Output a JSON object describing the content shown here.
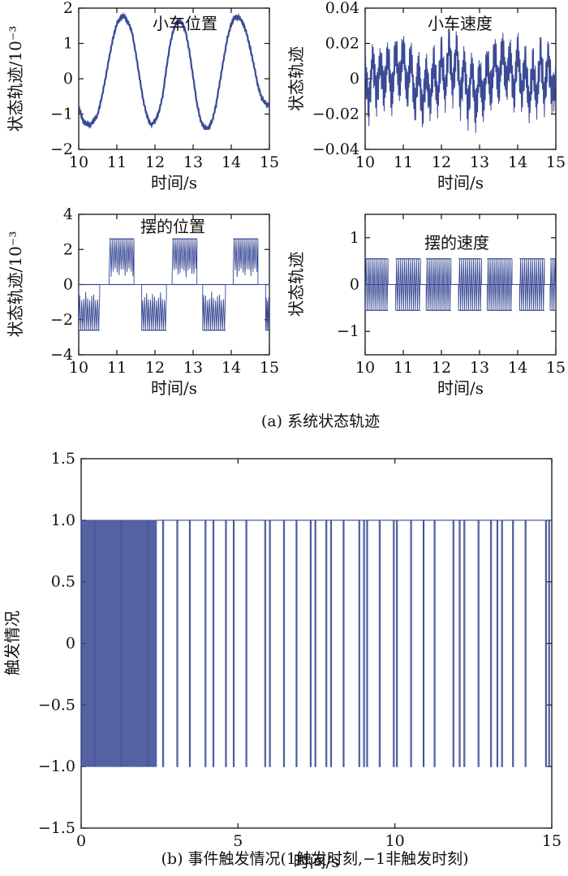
{
  "captions": {
    "a": "(a) 系统状态轨迹",
    "b": "(b) 事件触发情况(1触发时刻,−1非触发时刻)"
  },
  "colors": {
    "line": "#3a4a95",
    "axis": "#111111"
  },
  "chart_data": [
    {
      "id": "cart-position",
      "type": "line",
      "title": "小车位置",
      "xlabel": "时间/s",
      "ylabel": "状态轨迹/10⁻³",
      "xlim": [
        10,
        15
      ],
      "ylim": [
        -2,
        2
      ],
      "xticks": [
        10,
        11,
        12,
        13,
        14,
        15
      ],
      "yticks": [
        -2,
        -1,
        0,
        1,
        2
      ],
      "ytick_labels": [
        "−2",
        "−1",
        "0",
        "1",
        "2"
      ],
      "series": [
        {
          "x": [
            10.0,
            10.1,
            10.2,
            10.3,
            10.4,
            10.5,
            10.6,
            10.7,
            10.8,
            10.9,
            11.0,
            11.1,
            11.2,
            11.3,
            11.4,
            11.5,
            11.6,
            11.7,
            11.8,
            11.9,
            12.0,
            12.1,
            12.2,
            12.3,
            12.4,
            12.5,
            12.6,
            12.7,
            12.8,
            12.9,
            13.0,
            13.1,
            13.2,
            13.3,
            13.4,
            13.5,
            13.6,
            13.7,
            13.8,
            13.9,
            14.0,
            14.1,
            14.2,
            14.3,
            14.4,
            14.5,
            14.6,
            14.7,
            14.8,
            14.9,
            15.0
          ],
          "y": [
            -0.8,
            -1.15,
            -1.3,
            -1.3,
            -1.2,
            -1.0,
            -0.55,
            0.0,
            0.6,
            1.15,
            1.55,
            1.75,
            1.75,
            1.6,
            1.3,
            0.7,
            0.0,
            -0.65,
            -1.1,
            -1.3,
            -1.2,
            -0.95,
            -0.5,
            0.3,
            1.0,
            1.45,
            1.65,
            1.6,
            1.35,
            0.8,
            0.05,
            -0.7,
            -1.2,
            -1.4,
            -1.4,
            -1.2,
            -0.75,
            -0.1,
            0.55,
            1.15,
            1.55,
            1.75,
            1.75,
            1.6,
            1.3,
            0.85,
            0.35,
            -0.2,
            -0.55,
            -0.7,
            -0.75
          ]
        }
      ]
    },
    {
      "id": "cart-velocity",
      "type": "line",
      "title": "小车速度",
      "xlabel": "时间/s",
      "ylabel": "状态轨迹",
      "xlim": [
        10,
        15
      ],
      "ylim": [
        -0.04,
        0.04
      ],
      "xticks": [
        10,
        11,
        12,
        13,
        14,
        15
      ],
      "yticks": [
        -0.04,
        -0.02,
        0,
        0.02,
        0.04
      ],
      "ytick_labels": [
        "−0.04",
        "−0.02",
        "0",
        "0.02",
        "0.04"
      ],
      "series": [
        {
          "x": [
            10.0,
            10.1,
            10.2,
            10.3,
            10.4,
            10.5,
            10.6,
            10.7,
            10.8,
            10.9,
            11.0,
            11.1,
            11.2,
            11.3,
            11.4,
            11.5,
            11.6,
            11.7,
            11.8,
            11.9,
            12.0,
            12.1,
            12.2,
            12.3,
            12.4,
            12.5,
            12.6,
            12.7,
            12.8,
            12.9,
            13.0,
            13.1,
            13.2,
            13.3,
            13.4,
            13.5,
            13.6,
            13.7,
            13.8,
            13.9,
            14.0,
            14.1,
            14.2,
            14.3,
            14.4,
            14.5,
            14.6,
            14.7,
            14.8,
            14.9,
            15.0
          ],
          "y": [
            0.005,
            -0.015,
            0.012,
            -0.01,
            0.01,
            -0.008,
            0.015,
            -0.012,
            0.018,
            -0.005,
            0.02,
            -0.01,
            0.015,
            -0.018,
            0.008,
            -0.02,
            0.005,
            -0.015,
            0.01,
            -0.012,
            0.015,
            -0.008,
            0.02,
            -0.005,
            0.018,
            -0.012,
            0.01,
            -0.018,
            0.008,
            -0.02,
            0.005,
            -0.015,
            0.012,
            -0.01,
            0.018,
            -0.008,
            0.02,
            -0.005,
            0.015,
            -0.012,
            0.018,
            -0.01,
            0.01,
            -0.015,
            0.008,
            -0.012,
            0.015,
            -0.01,
            0.012,
            -0.008,
            -0.005
          ]
        }
      ]
    },
    {
      "id": "pendulum-position",
      "type": "line",
      "title": "摆的位置",
      "xlabel": "时间/s",
      "ylabel": "状态轨迹/10⁻³",
      "xlim": [
        10,
        15
      ],
      "ylim": [
        -4,
        4
      ],
      "xticks": [
        10,
        11,
        12,
        13,
        14,
        15
      ],
      "yticks": [
        -4,
        -2,
        0,
        2,
        4
      ],
      "ytick_labels": [
        "−4",
        "−2",
        "0",
        "2",
        "4"
      ],
      "bursts": {
        "amplitude": 2.6,
        "segments": [
          {
            "start": 10.0,
            "end": 10.55,
            "sign": -1
          },
          {
            "start": 10.8,
            "end": 11.45,
            "sign": 1
          },
          {
            "start": 11.65,
            "end": 12.3,
            "sign": -1
          },
          {
            "start": 12.45,
            "end": 13.1,
            "sign": 1
          },
          {
            "start": 13.25,
            "end": 13.85,
            "sign": -1
          },
          {
            "start": 14.05,
            "end": 14.7,
            "sign": 1
          },
          {
            "start": 14.9,
            "end": 15.0,
            "sign": -1
          }
        ]
      }
    },
    {
      "id": "pendulum-velocity",
      "type": "line",
      "title": "摆的速度",
      "xlabel": "时间/s",
      "ylabel": "状态轨迹",
      "xlim": [
        10,
        15
      ],
      "ylim": [
        -1.5,
        1.5
      ],
      "xticks": [
        10,
        11,
        12,
        13,
        14,
        15
      ],
      "yticks": [
        -1,
        0,
        1
      ],
      "ytick_labels": [
        "−1",
        "0",
        "1"
      ],
      "bursts": {
        "amplitude": 0.55,
        "segments": [
          {
            "start": 10.0,
            "end": 10.6,
            "sign": 0
          },
          {
            "start": 10.8,
            "end": 11.45,
            "sign": 0
          },
          {
            "start": 11.6,
            "end": 12.25,
            "sign": 0
          },
          {
            "start": 12.45,
            "end": 13.05,
            "sign": 0
          },
          {
            "start": 13.2,
            "end": 13.85,
            "sign": 0
          },
          {
            "start": 14.05,
            "end": 14.7,
            "sign": 0
          },
          {
            "start": 14.85,
            "end": 15.0,
            "sign": 0
          }
        ]
      }
    },
    {
      "id": "event-trigger",
      "type": "line",
      "title": "",
      "xlabel": "时间/s",
      "ylabel": "触发情况",
      "xlim": [
        0,
        15
      ],
      "ylim": [
        -1.5,
        1.5
      ],
      "xticks": [
        0,
        5,
        10,
        15
      ],
      "yticks": [
        -1.5,
        -1.0,
        -0.5,
        0,
        0.5,
        1.0,
        1.5
      ],
      "ytick_labels": [
        "−1.5",
        "−1.0",
        "−0.5",
        "0",
        "0.5",
        "1.0",
        "1.5"
      ],
      "levels": [
        -1,
        1
      ],
      "dense_until": 2.4,
      "low_pulses": [
        2.6,
        3.05,
        3.45,
        3.95,
        4.2,
        4.6,
        4.85,
        5.25,
        5.85,
        6.0,
        6.45,
        6.85,
        7.3,
        7.45,
        7.8,
        7.95,
        8.35,
        8.85,
        9.0,
        9.1,
        9.5,
        9.95,
        10.05,
        10.5,
        10.9,
        11.25,
        11.85,
        12.05,
        12.2,
        12.65,
        13.05,
        13.25,
        13.4,
        13.75,
        14.15,
        14.8,
        14.9
      ]
    }
  ]
}
